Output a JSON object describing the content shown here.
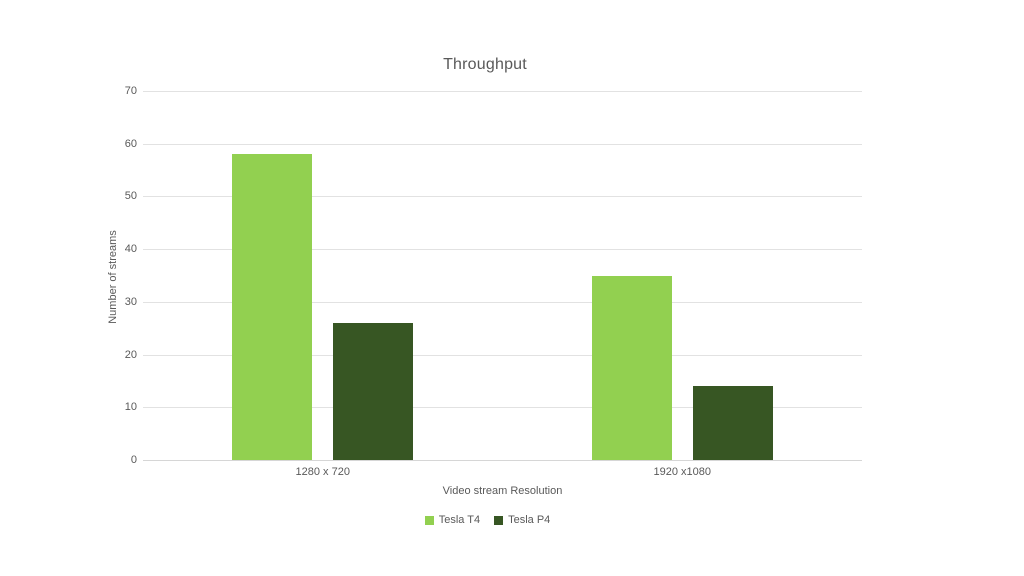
{
  "chart_data": {
    "type": "bar",
    "title": "Throughput",
    "categories": [
      "1280 x 720",
      "1920 x1080"
    ],
    "series": [
      {
        "name": "Tesla T4",
        "color": "#92D050",
        "values": [
          58,
          35
        ]
      },
      {
        "name": "Tesla P4",
        "color": "#375623",
        "values": [
          26,
          14
        ]
      }
    ],
    "xlabel": "Video stream Resolution",
    "ylabel": "Number of streams",
    "ylim": [
      0,
      70
    ],
    "yticks": [
      0,
      10,
      20,
      30,
      40,
      50,
      60,
      70
    ],
    "grid": true,
    "legend_position": "bottom",
    "colors": {
      "background": "#ffffff",
      "gridline": "#e2e2e2",
      "axis_line": "#d6d6d6",
      "text": "#595959"
    }
  }
}
